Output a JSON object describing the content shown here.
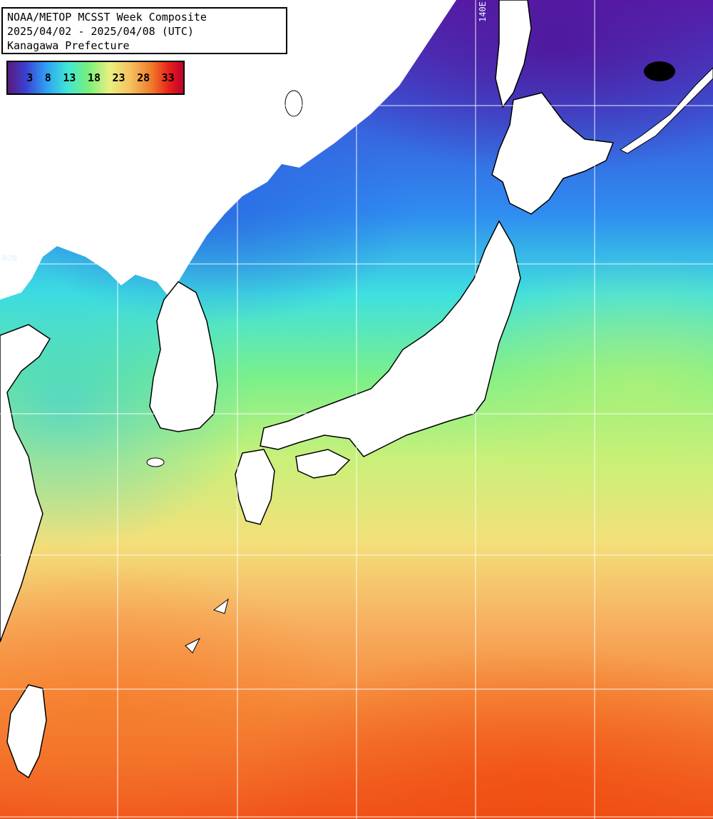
{
  "title": {
    "line1": "NOAA/METOP MCSST Week Composite",
    "line2": "2025/04/02 - 2025/04/08 (UTC)",
    "line3": "Kanagawa Prefecture"
  },
  "legend": {
    "ticks": [
      "3",
      "8",
      "13",
      "18",
      "23",
      "28",
      "33"
    ]
  },
  "grid_labels": {
    "longitude": "140E",
    "latitude": "40N"
  }
}
